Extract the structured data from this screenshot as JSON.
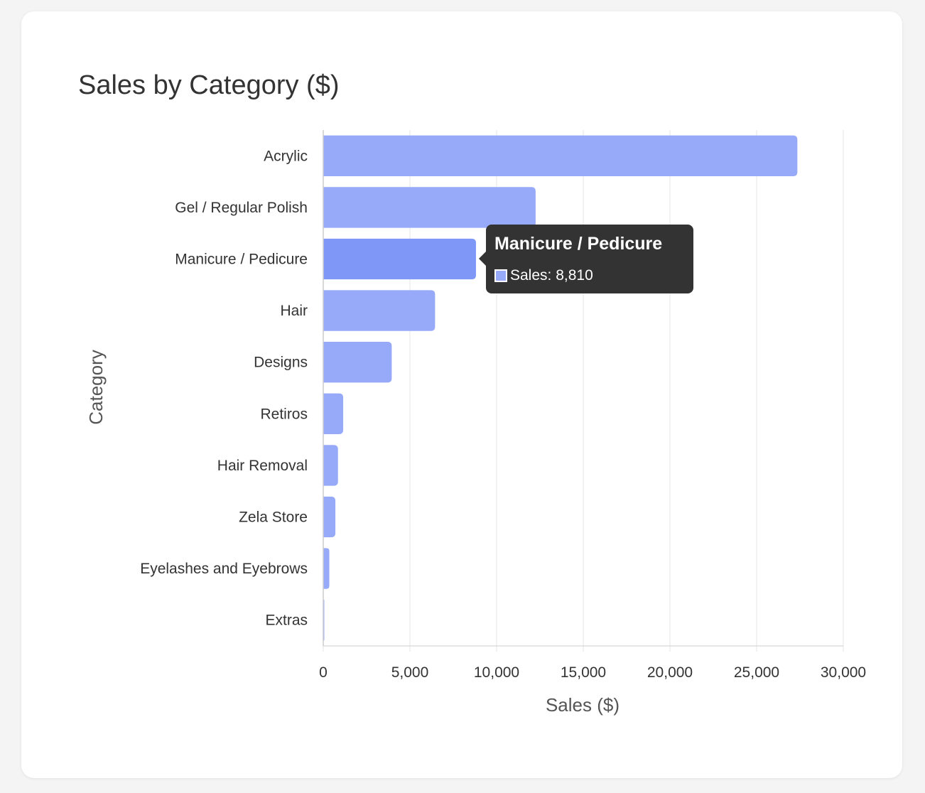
{
  "colors": {
    "bar": "#97a9f9",
    "bar_active": "#7f98f8",
    "grid": "#e6e6e6",
    "axis": "#cccccc",
    "tooltip_bg": "#333333",
    "tooltip_swatch": "#97a9f9"
  },
  "tooltip": {
    "title": "Manicure / Pedicure",
    "body": "Sales: 8,810"
  },
  "chart_data": {
    "type": "bar",
    "orientation": "horizontal",
    "title": "Sales by Category ($)",
    "xlabel": "Sales ($)",
    "ylabel": "Category",
    "xlim": [
      0,
      30000
    ],
    "x_ticks": [
      0,
      5000,
      10000,
      15000,
      20000,
      25000,
      30000
    ],
    "x_tick_labels": [
      "0",
      "5,000",
      "10,000",
      "15,000",
      "20,000",
      "25,000",
      "30,000"
    ],
    "grid": true,
    "legend": "none",
    "active_category": "Manicure / Pedicure",
    "categories": [
      "Acrylic",
      "Gel / Regular Polish",
      "Manicure / Pedicure",
      "Hair",
      "Designs",
      "Retiros",
      "Hair Removal",
      "Zela Store",
      "Eyelashes and Eyebrows",
      "Extras"
    ],
    "series": [
      {
        "values": [
          27350,
          12250,
          8810,
          6450,
          3950,
          1150,
          850,
          700,
          350,
          60
        ]
      }
    ]
  }
}
